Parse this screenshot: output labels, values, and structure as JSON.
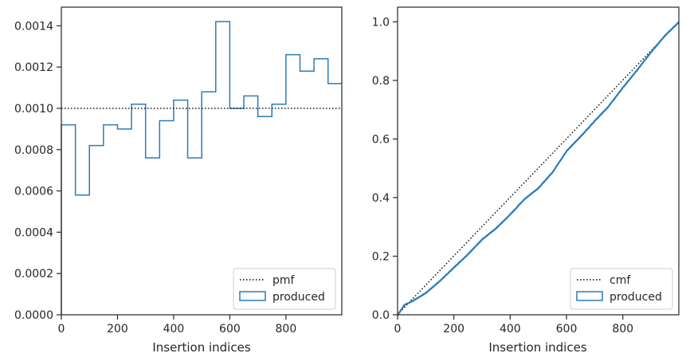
{
  "chart_data": [
    {
      "type": "histogram-step",
      "xlabel": "Insertion indices",
      "ylabel": "",
      "xlim": [
        0,
        999
      ],
      "ylim": [
        0,
        0.00149
      ],
      "xticks": [
        0,
        200,
        400,
        600,
        800
      ],
      "xtick_labels": [
        "0",
        "200",
        "400",
        "600",
        "800"
      ],
      "yticks": [
        0,
        0.0002,
        0.0004,
        0.0006,
        0.0008,
        0.001,
        0.0012,
        0.0014
      ],
      "ytick_labels": [
        "0.0000",
        "0.0002",
        "0.0004",
        "0.0006",
        "0.0008",
        "0.0010",
        "0.0012",
        "0.0014"
      ],
      "bin_edges": [
        0,
        50,
        100,
        150,
        200,
        250,
        300,
        350,
        400,
        450,
        500,
        550,
        600,
        650,
        700,
        750,
        800,
        850,
        900,
        950,
        1000
      ],
      "values": [
        0.00092,
        0.00058,
        0.00082,
        0.00092,
        0.0009,
        0.00102,
        0.00076,
        0.00094,
        0.00104,
        0.00076,
        0.00108,
        0.00142,
        0.001,
        0.00106,
        0.00096,
        0.00102,
        0.00126,
        0.00118,
        0.00124,
        0.00112
      ],
      "reference_y": 0.001,
      "legend": {
        "position": "lower-right",
        "entries": [
          "pmf",
          "produced"
        ]
      },
      "colors": {
        "produced": "#2b7bb9",
        "reference": "#000000"
      }
    },
    {
      "type": "line",
      "xlabel": "Insertion indices",
      "ylabel": "",
      "xlim": [
        0,
        999
      ],
      "ylim": [
        0,
        1.05
      ],
      "xticks": [
        0,
        200,
        400,
        600,
        800
      ],
      "xtick_labels": [
        "0",
        "200",
        "400",
        "600",
        "800"
      ],
      "yticks": [
        0,
        0.2,
        0.4,
        0.6,
        0.8,
        1.0
      ],
      "ytick_labels": [
        "0.0",
        "0.2",
        "0.4",
        "0.6",
        "0.8",
        "1.0"
      ],
      "series": [
        {
          "name": "cmf",
          "style": "dotted",
          "x": [
            0,
            999
          ],
          "y": [
            0.001,
            1.0
          ]
        },
        {
          "name": "produced",
          "style": "step",
          "x": [
            0,
            25,
            50,
            100,
            150,
            200,
            250,
            300,
            350,
            400,
            450,
            500,
            550,
            600,
            650,
            700,
            750,
            800,
            850,
            900,
            950,
            999
          ],
          "y": [
            0.0,
            0.035,
            0.046,
            0.075,
            0.116,
            0.162,
            0.207,
            0.258,
            0.296,
            0.343,
            0.395,
            0.433,
            0.487,
            0.559,
            0.609,
            0.662,
            0.713,
            0.776,
            0.835,
            0.897,
            0.954,
            1.0
          ]
        }
      ],
      "legend": {
        "position": "lower-right",
        "entries": [
          "cmf",
          "produced"
        ]
      },
      "colors": {
        "produced": "#2b7bb9",
        "reference": "#000000"
      }
    }
  ]
}
